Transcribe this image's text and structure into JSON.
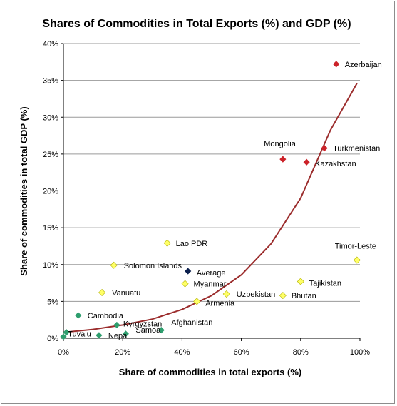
{
  "chart_data": {
    "type": "scatter",
    "title": "Shares of Commodities in Total Exports (%) and GDP (%)",
    "xlabel": "Share of commodities in total exports (%)",
    "ylabel": "Share of commodities in total GDP (%)",
    "xlim": [
      0,
      100
    ],
    "ylim": [
      0,
      40
    ],
    "x_ticks": [
      "0%",
      "20%",
      "40%",
      "60%",
      "80%",
      "100%"
    ],
    "y_ticks": [
      "0%",
      "5%",
      "10%",
      "15%",
      "20%",
      "25%",
      "30%",
      "35%",
      "40%"
    ],
    "grid": "horizontal",
    "legend": "none",
    "colors": {
      "red": "#cc2229",
      "yellow": "#ffff66",
      "green": "#2e9e6e",
      "navy": "#0b1f4d",
      "trend": "#9b2c2c",
      "grid": "#9a9a9a"
    },
    "points": [
      {
        "label": "Azerbaijan",
        "x": 92,
        "y": 37.2,
        "color": "red"
      },
      {
        "label": "Turkmenistan",
        "x": 88,
        "y": 25.8,
        "color": "red"
      },
      {
        "label": "Mongolia",
        "x": 74,
        "y": 24.3,
        "color": "red"
      },
      {
        "label": "Kazakhstan",
        "x": 82,
        "y": 23.9,
        "color": "red"
      },
      {
        "label": "Timor-Leste",
        "x": 99,
        "y": 10.6,
        "color": "yellow"
      },
      {
        "label": "Lao PDR",
        "x": 35,
        "y": 12.9,
        "color": "yellow"
      },
      {
        "label": "Solomon Islands",
        "x": 17,
        "y": 9.9,
        "color": "yellow"
      },
      {
        "label": "Average",
        "x": 42,
        "y": 9.1,
        "color": "navy"
      },
      {
        "label": "Tajikistan",
        "x": 80,
        "y": 7.7,
        "color": "yellow"
      },
      {
        "label": "Myanmar",
        "x": 41,
        "y": 7.4,
        "color": "yellow"
      },
      {
        "label": "Vanuatu",
        "x": 13,
        "y": 6.2,
        "color": "yellow"
      },
      {
        "label": "Uzbekistan",
        "x": 55,
        "y": 6.0,
        "color": "yellow"
      },
      {
        "label": "Bhutan",
        "x": 74,
        "y": 5.8,
        "color": "yellow"
      },
      {
        "label": "Armenia",
        "x": 45,
        "y": 5.0,
        "color": "yellow"
      },
      {
        "label": "Cambodia",
        "x": 5,
        "y": 3.1,
        "color": "green"
      },
      {
        "label": "Kyrgyzstan",
        "x": 18,
        "y": 1.8,
        "color": "green"
      },
      {
        "label": "Afghanistan",
        "x": 33,
        "y": 1.1,
        "color": "green"
      },
      {
        "label": "Tuvalu",
        "x": 1,
        "y": 0.8,
        "color": "green"
      },
      {
        "label": "Samoa",
        "x": 21,
        "y": 0.6,
        "color": "green"
      },
      {
        "label": "Nepal",
        "x": 12,
        "y": 0.4,
        "color": "green"
      },
      {
        "label": "",
        "x": 0,
        "y": 0.2,
        "color": "green"
      }
    ],
    "trendline": {
      "type": "exponential",
      "x": [
        0,
        10,
        20,
        30,
        40,
        50,
        60,
        70,
        80,
        90,
        99
      ],
      "y": [
        0.8,
        1.2,
        1.8,
        2.6,
        3.9,
        5.8,
        8.6,
        12.8,
        19.0,
        28.2,
        34.6
      ]
    }
  }
}
